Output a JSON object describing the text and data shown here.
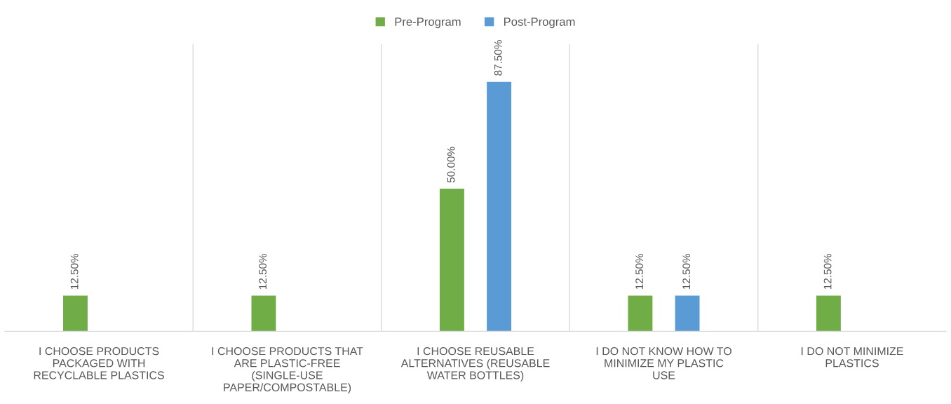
{
  "chart_data": {
    "type": "bar",
    "categories": [
      "I CHOOSE PRODUCTS PACKAGED WITH RECYCLABLE PLASTICS",
      "I CHOOSE PRODUCTS THAT ARE PLASTIC-FREE (SINGLE-USE PAPER/COMPOSTABLE)",
      "I CHOOSE REUSABLE ALTERNATIVES (REUSABLE WATER BOTTLES)",
      "I DO NOT KNOW HOW TO MINIMIZE MY PLASTIC USE",
      "I DO NOT MINIMIZE PLASTICS"
    ],
    "series": [
      {
        "name": "Pre-Program",
        "color": "#70ad47",
        "values": [
          12.5,
          12.5,
          50,
          12.5,
          12.5
        ],
        "value_labels": [
          "12.50%",
          "12.50%",
          "50.00%",
          "12.50%",
          "12.50%"
        ]
      },
      {
        "name": "Post-Program",
        "color": "#5b9bd5",
        "values": [
          null,
          null,
          87.5,
          12.5,
          null
        ],
        "value_labels": [
          null,
          null,
          "87.50%",
          "12.50%",
          null
        ]
      }
    ],
    "legend": "top",
    "grid": "x",
    "tick_labels": "x"
  }
}
